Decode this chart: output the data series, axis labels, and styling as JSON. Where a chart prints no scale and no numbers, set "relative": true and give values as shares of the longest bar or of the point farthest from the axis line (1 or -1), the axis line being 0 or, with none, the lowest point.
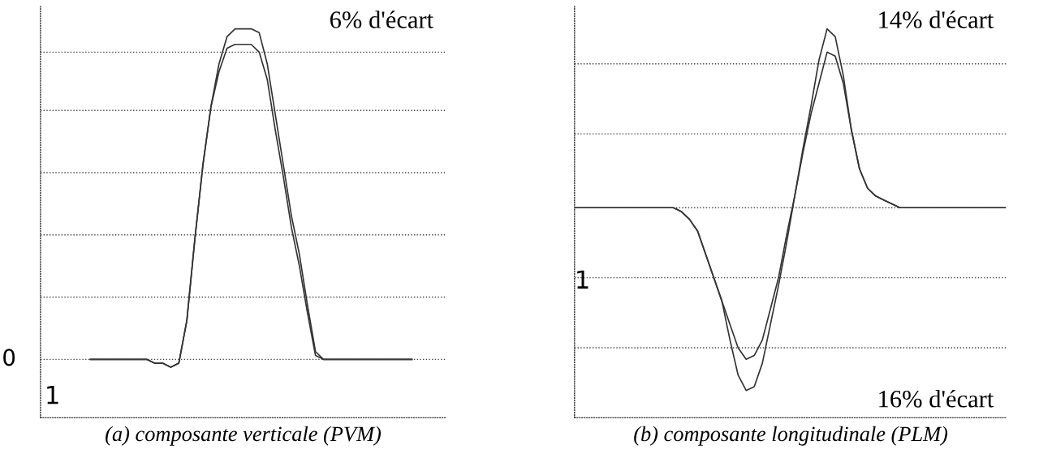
{
  "chart_data": [
    {
      "type": "line",
      "relative": true,
      "xlabel": "(a) composante verticale (PVM)",
      "categories": [
        null,
        null,
        null,
        null,
        null,
        null,
        null,
        null,
        null,
        null,
        null,
        null,
        null,
        null,
        null,
        null,
        null,
        null,
        null,
        null,
        null,
        null,
        null,
        null,
        null,
        null,
        null,
        null,
        null,
        null,
        null,
        null,
        null,
        null,
        null,
        null,
        null,
        null,
        null,
        null,
        null,
        null,
        null,
        null,
        null,
        null,
        null,
        null,
        null,
        null,
        null
      ],
      "series": [
        {
          "color": "#333333",
          "values": [
            null,
            null,
            null,
            null,
            null,
            null,
            0.15,
            0.15,
            0.15,
            0.15,
            0.15,
            0.15,
            0.15,
            0.15,
            0.14,
            0.14,
            0.13,
            0.14,
            0.25,
            0.46,
            0.65,
            0.8,
            0.91,
            0.98,
            1.0,
            1.0,
            1.0,
            0.99,
            0.91,
            0.78,
            0.65,
            0.52,
            0.42,
            0.29,
            0.17,
            0.15,
            0.15,
            0.15,
            0.15,
            0.15,
            0.15,
            0.15,
            0.15,
            0.15,
            0.15,
            0.15,
            0.15,
            null,
            null,
            null,
            null
          ]
        },
        {
          "color": "#333333",
          "values": [
            null,
            null,
            null,
            null,
            null,
            null,
            0.15,
            0.15,
            0.15,
            0.15,
            0.15,
            0.15,
            0.15,
            0.15,
            0.14,
            0.14,
            0.13,
            0.14,
            0.25,
            0.46,
            0.65,
            0.8,
            0.89,
            0.95,
            0.96,
            0.96,
            0.96,
            0.94,
            0.87,
            0.74,
            0.62,
            0.49,
            0.39,
            0.27,
            0.16,
            0.15,
            0.15,
            0.15,
            0.15,
            0.15,
            0.15,
            0.15,
            0.15,
            0.15,
            0.15,
            0.15,
            0.15,
            null,
            null,
            null,
            null
          ]
        }
      ],
      "ref_lines": [
        {
          "axis": "y",
          "value": 0.15,
          "label": "0",
          "color": "#444444",
          "line_style": "dotted"
        },
        {
          "axis": "y",
          "value": 0.31,
          "color": "#444444",
          "line_style": "dotted"
        },
        {
          "axis": "y",
          "value": 0.47,
          "color": "#444444",
          "line_style": "dotted"
        },
        {
          "axis": "y",
          "value": 0.63,
          "color": "#444444",
          "line_style": "dotted"
        },
        {
          "axis": "y",
          "value": 0.79,
          "color": "#444444",
          "line_style": "dotted"
        },
        {
          "axis": "y",
          "value": 0.94,
          "color": "#444444",
          "line_style": "dotted"
        }
      ],
      "annotations": [
        "6% d'écart",
        "1"
      ]
    },
    {
      "type": "line",
      "relative": true,
      "xlabel": "(b) composante longitudinale (PLM)",
      "categories": [
        null,
        null,
        null,
        null,
        null,
        null,
        null,
        null,
        null,
        null,
        null,
        null,
        null,
        null,
        null,
        null,
        null,
        null,
        null,
        null,
        null,
        null,
        null,
        null,
        null,
        null,
        null,
        null,
        null,
        null,
        null,
        null,
        null,
        null,
        null,
        null,
        null,
        null,
        null,
        null,
        null,
        null,
        null,
        null,
        null,
        null,
        null,
        null,
        null,
        null,
        null,
        null,
        null,
        null
      ],
      "series": [
        {
          "color": "#333333",
          "values": [
            0.54,
            0.54,
            0.54,
            0.54,
            0.54,
            0.54,
            0.54,
            0.54,
            0.54,
            0.54,
            0.54,
            0.54,
            0.54,
            0.53,
            0.51,
            0.48,
            0.42,
            0.36,
            0.3,
            0.2,
            0.11,
            0.07,
            0.08,
            0.14,
            0.24,
            0.34,
            0.45,
            0.57,
            0.69,
            0.8,
            0.92,
            1.0,
            0.98,
            0.88,
            0.74,
            0.64,
            0.59,
            0.57,
            0.56,
            0.55,
            0.54,
            0.54,
            0.54,
            0.54,
            0.54,
            0.54,
            0.54,
            0.54,
            0.54,
            0.54,
            0.54,
            0.54,
            0.54,
            0.54
          ]
        },
        {
          "color": "#333333",
          "values": [
            0.54,
            0.54,
            0.54,
            0.54,
            0.54,
            0.54,
            0.54,
            0.54,
            0.54,
            0.54,
            0.54,
            0.54,
            0.54,
            0.53,
            0.51,
            0.48,
            0.42,
            0.36,
            0.3,
            0.24,
            0.18,
            0.15,
            0.16,
            0.2,
            0.28,
            0.36,
            0.47,
            0.57,
            0.68,
            0.78,
            0.86,
            0.94,
            0.93,
            0.86,
            0.74,
            0.64,
            0.59,
            0.57,
            0.56,
            0.55,
            0.54,
            0.54,
            0.54,
            0.54,
            0.54,
            0.54,
            0.54,
            0.54,
            0.54,
            0.54,
            0.54,
            0.54,
            0.54,
            0.54
          ]
        }
      ],
      "ref_lines": [
        {
          "axis": "y",
          "value": 0.18,
          "color": "#444444",
          "line_style": "dotted"
        },
        {
          "axis": "y",
          "value": 0.36,
          "color": "#444444",
          "line_style": "dotted"
        },
        {
          "axis": "y",
          "value": 0.54,
          "color": "#444444",
          "line_style": "dotted"
        },
        {
          "axis": "y",
          "value": 0.73,
          "color": "#444444",
          "line_style": "dotted"
        },
        {
          "axis": "y",
          "value": 0.91,
          "color": "#444444",
          "line_style": "dotted"
        }
      ],
      "annotations": [
        "14% d'écart",
        "16% d'écart",
        "1"
      ]
    }
  ]
}
